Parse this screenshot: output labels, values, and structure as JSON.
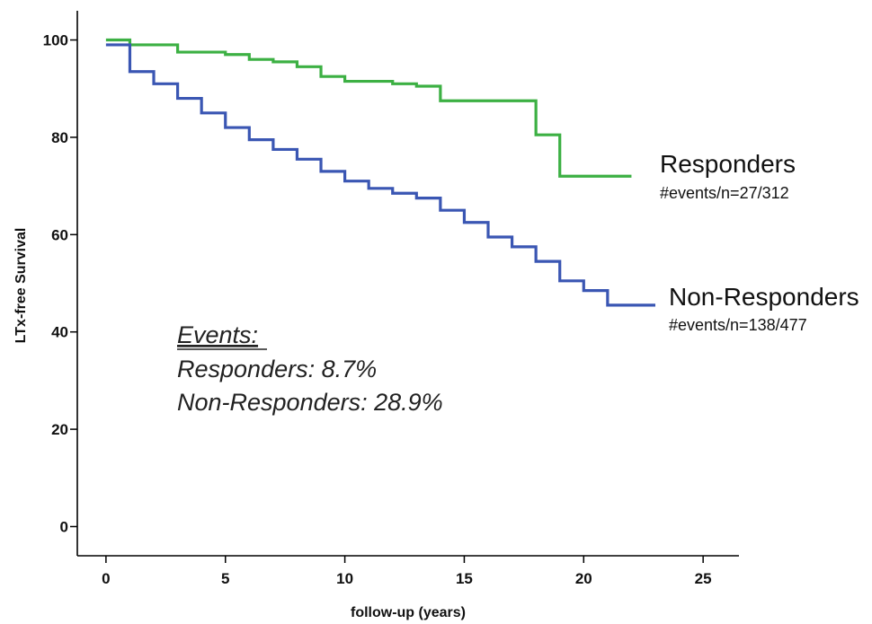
{
  "chart_data": {
    "type": "line",
    "xlabel": "follow-up (years)",
    "ylabel": "LTx-free Survival",
    "xlim": [
      -1.2,
      26.5
    ],
    "ylim": [
      -6,
      106
    ],
    "x_ticks": [
      0,
      5,
      10,
      15,
      20,
      25
    ],
    "y_ticks": [
      0,
      20,
      40,
      60,
      80,
      100
    ],
    "grid": false,
    "series": [
      {
        "name": "Responders",
        "color": "#3cb043",
        "step": true,
        "points": [
          [
            0,
            100
          ],
          [
            1,
            99
          ],
          [
            3,
            97.5
          ],
          [
            5,
            97
          ],
          [
            6,
            96
          ],
          [
            7,
            95.5
          ],
          [
            8,
            94.5
          ],
          [
            9,
            92.5
          ],
          [
            10,
            91.5
          ],
          [
            12,
            91
          ],
          [
            13,
            90.5
          ],
          [
            14,
            87.5
          ],
          [
            18,
            80.5
          ],
          [
            19,
            72
          ],
          [
            22,
            72
          ]
        ]
      },
      {
        "name": "Non-Responders",
        "color": "#3a56b3",
        "step": true,
        "points": [
          [
            0,
            99
          ],
          [
            1,
            93.5
          ],
          [
            2,
            91
          ],
          [
            3,
            88
          ],
          [
            4,
            85
          ],
          [
            5,
            82
          ],
          [
            6,
            79.5
          ],
          [
            7,
            77.5
          ],
          [
            8,
            75.5
          ],
          [
            9,
            73
          ],
          [
            10,
            71
          ],
          [
            11,
            69.5
          ],
          [
            12,
            68.5
          ],
          [
            13,
            67.5
          ],
          [
            14,
            65
          ],
          [
            15,
            62.5
          ],
          [
            16,
            59.5
          ],
          [
            17,
            57.5
          ],
          [
            18,
            54.5
          ],
          [
            19,
            50.5
          ],
          [
            20,
            48.5
          ],
          [
            21,
            45.5
          ],
          [
            23,
            45.5
          ]
        ]
      }
    ],
    "annotations": {
      "responders_name": "Responders",
      "responders_count": "#events/n=27/312",
      "nonresponders_name": "Non-Responders",
      "nonresponders_count": "#events/n=138/477",
      "events_heading": "Events:",
      "events_responders": "Responders: 8.7%",
      "events_nonresponders": "Non-Responders: 28.9%"
    }
  }
}
